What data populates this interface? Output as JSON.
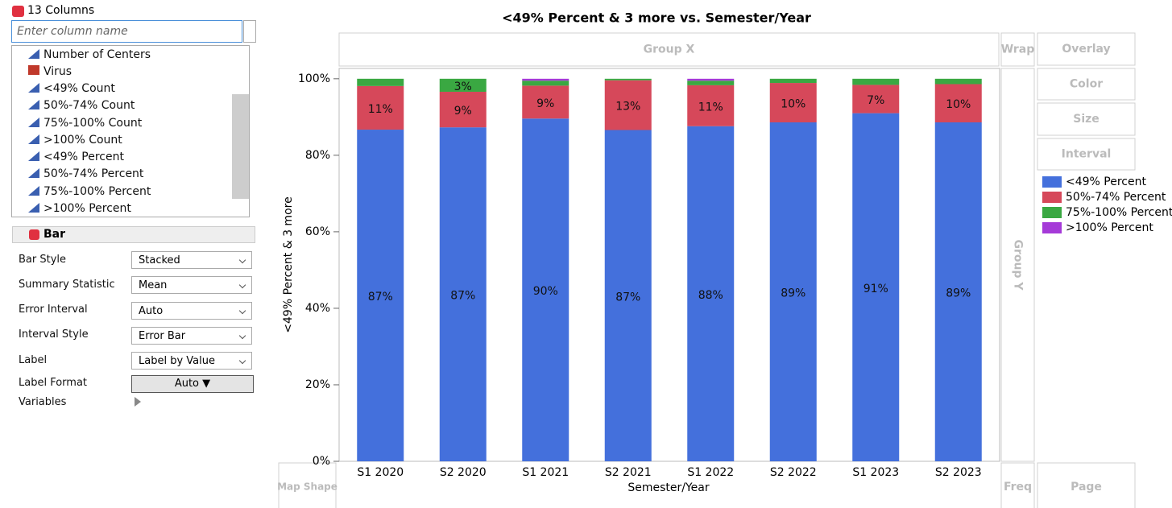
{
  "columns_panel": {
    "header": "13 Columns",
    "search_placeholder": "Enter column name",
    "columns": [
      "Number of Centers",
      "Virus",
      "<49% Count",
      "50%-74% Count",
      "75%-100% Count",
      ">100% Count",
      "<49% Percent",
      "50%-74% Percent",
      "75%-100% Percent",
      ">100% Percent"
    ]
  },
  "bar_panel": {
    "title": "Bar",
    "settings": [
      {
        "label": "Bar Style",
        "value": "Stacked"
      },
      {
        "label": "Summary Statistic",
        "value": "Mean"
      },
      {
        "label": "Error Interval",
        "value": "Auto"
      },
      {
        "label": "Interval Style",
        "value": "Error Bar"
      },
      {
        "label": "Label",
        "value": "Label by Value"
      },
      {
        "label": "Label Format",
        "value": "Auto"
      }
    ],
    "variables": "Variables"
  },
  "drop_zones": {
    "group_x": "Group X",
    "wrap": "Wrap",
    "overlay": "Overlay",
    "color": "Color",
    "size": "Size",
    "interval": "Interval",
    "group_y": "Group Y",
    "map_shape": "Map Shape",
    "freq": "Freq",
    "page": "Page"
  },
  "chart_data": {
    "type": "bar",
    "stacked": true,
    "title": "<49% Percent & 3 more vs. Semester/Year",
    "x_label": "Semester/Year",
    "y_label": "<49% Percent & 3 more",
    "categories": [
      "S1 2020",
      "S2 2020",
      "S1 2021",
      "S2 2021",
      "S1 2022",
      "S2 2022",
      "S1 2023",
      "S2 2023"
    ],
    "series": [
      {
        "name": "<49% Percent",
        "color": "#4470dc",
        "values": [
          86.7,
          87.3,
          89.6,
          86.6,
          87.6,
          88.6,
          91.0,
          88.6
        ],
        "value_labels": [
          "87%",
          "87%",
          "90%",
          "87%",
          "88%",
          "89%",
          "91%",
          "89%"
        ]
      },
      {
        "name": "50%-74% Percent",
        "color": "#d6485a",
        "values": [
          11.4,
          9.3,
          8.6,
          13.0,
          10.7,
          10.3,
          7.4,
          10.0
        ],
        "value_labels": [
          "11%",
          "9%",
          "9%",
          "13%",
          "11%",
          "10%",
          "7%",
          "10%"
        ]
      },
      {
        "name": "75%-100% Percent",
        "color": "#3aa842",
        "values": [
          1.9,
          3.4,
          1.3,
          0.4,
          1.2,
          1.1,
          1.6,
          1.4
        ],
        "value_labels": [
          null,
          "3%",
          null,
          null,
          null,
          null,
          null,
          null
        ]
      },
      {
        "name": ">100% Percent",
        "color": "#a53ad8",
        "values": [
          0,
          0,
          0.5,
          0,
          0.5,
          0,
          0,
          0
        ],
        "value_labels": [
          null,
          null,
          null,
          null,
          null,
          null,
          null,
          null
        ]
      }
    ],
    "ylim": [
      0,
      102.7
    ],
    "yticks": [
      {
        "value": 0,
        "label": "0%"
      },
      {
        "value": 20,
        "label": "20%"
      },
      {
        "value": 40,
        "label": "40%"
      },
      {
        "value": 60,
        "label": "60%"
      },
      {
        "value": 80,
        "label": "80%"
      },
      {
        "value": 100,
        "label": "100%"
      }
    ],
    "legend": "right"
  }
}
